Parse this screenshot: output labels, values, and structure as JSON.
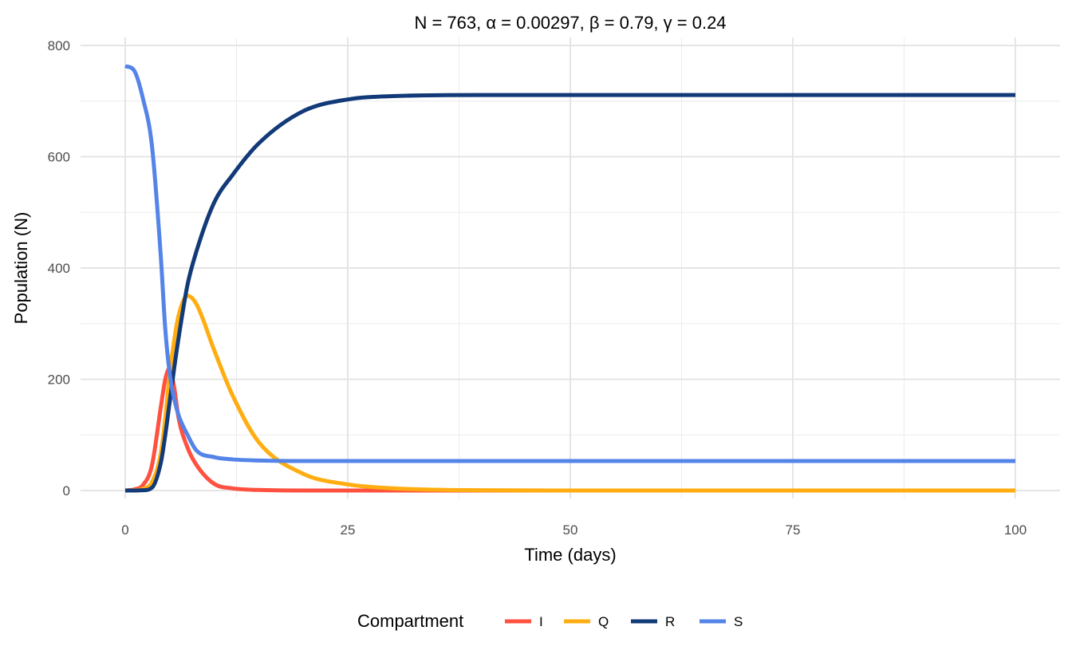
{
  "chart_data": {
    "type": "line",
    "title": "N = 763, α = 0.00297, β = 0.79, γ = 0.24",
    "xlabel": "Time (days)",
    "ylabel": "Population (N)",
    "xlim": [
      0,
      100
    ],
    "ylim": [
      0,
      800
    ],
    "x_ticks": [
      "0",
      "25",
      "50",
      "75",
      "100"
    ],
    "y_ticks": [
      "0",
      "200",
      "400",
      "600",
      "800"
    ],
    "grid": true,
    "legend": {
      "title": "Compartment",
      "position": "bottom"
    },
    "x": [
      0,
      1,
      2,
      3,
      4,
      4.5,
      5,
      5.5,
      6,
      7,
      8,
      10,
      12,
      15,
      20,
      25,
      30,
      40,
      50,
      60,
      70,
      80,
      90,
      100
    ],
    "series": [
      {
        "name": "I",
        "color": "#FF5040",
        "values": [
          0,
          2,
          10,
          45,
          150,
          200,
          220,
          185,
          130,
          77,
          46,
          12,
          4,
          1,
          0,
          0,
          0,
          0,
          0,
          0,
          0,
          0,
          0,
          0
        ]
      },
      {
        "name": "Q",
        "color": "#FFAD10",
        "values": [
          0,
          0.5,
          3,
          15,
          67,
          130,
          210,
          270,
          315,
          350,
          335,
          252,
          173,
          87,
          30,
          11,
          4,
          0.5,
          0,
          0,
          0,
          0,
          0,
          0
        ]
      },
      {
        "name": "R",
        "color": "#123A78",
        "values": [
          0,
          0,
          0.5,
          5,
          50,
          100,
          160,
          220,
          275,
          370,
          430,
          518,
          566,
          624,
          682,
          703,
          709,
          711,
          711,
          711,
          711,
          711,
          711,
          711
        ]
      },
      {
        "name": "S",
        "color": "#5584E8",
        "values": [
          763,
          755,
          704,
          620,
          420,
          290,
          210,
          165,
          135,
          100,
          72,
          60,
          56,
          54,
          53,
          53,
          53,
          53,
          53,
          53,
          53,
          53,
          53,
          53
        ]
      }
    ]
  }
}
